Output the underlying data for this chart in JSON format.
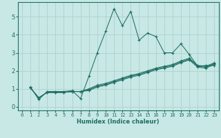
{
  "xlabel": "Humidex (Indice chaleur)",
  "xlim": [
    -0.5,
    23.5
  ],
  "ylim": [
    -0.2,
    5.8
  ],
  "xticks": [
    0,
    1,
    2,
    3,
    4,
    5,
    6,
    7,
    8,
    9,
    10,
    11,
    12,
    13,
    14,
    15,
    16,
    17,
    18,
    19,
    20,
    21,
    22,
    23
  ],
  "yticks": [
    0,
    1,
    2,
    3,
    4,
    5
  ],
  "bg_color": "#c8e8e5",
  "line_color": "#1e6e63",
  "grid_color": "#b0d4cf",
  "line1_x": [
    1,
    2,
    3,
    4,
    5,
    6,
    7,
    8,
    9,
    10,
    11,
    12,
    13,
    14,
    15,
    16,
    17,
    18,
    19,
    20,
    21,
    22,
    23
  ],
  "line1_y": [
    1.1,
    0.4,
    0.85,
    0.85,
    0.85,
    0.9,
    0.45,
    1.7,
    3.0,
    4.2,
    5.45,
    4.5,
    5.3,
    3.7,
    4.1,
    3.9,
    3.0,
    3.0,
    3.5,
    2.9,
    2.25,
    2.3,
    2.3
  ],
  "line2_x": [
    1,
    2,
    3,
    4,
    5,
    6,
    7,
    8,
    9,
    10,
    11,
    12,
    13,
    14,
    15,
    16,
    17,
    18,
    19,
    20,
    21,
    22,
    23
  ],
  "line2_y": [
    1.05,
    0.5,
    0.8,
    0.8,
    0.8,
    0.85,
    0.85,
    0.9,
    1.1,
    1.2,
    1.35,
    1.5,
    1.65,
    1.75,
    1.9,
    2.05,
    2.15,
    2.25,
    2.45,
    2.6,
    2.2,
    2.15,
    2.35
  ],
  "line3_x": [
    1,
    2,
    3,
    4,
    5,
    6,
    7,
    8,
    9,
    10,
    11,
    12,
    13,
    14,
    15,
    16,
    17,
    18,
    19,
    20,
    21,
    22,
    23
  ],
  "line3_y": [
    1.05,
    0.5,
    0.8,
    0.8,
    0.8,
    0.85,
    0.85,
    0.95,
    1.15,
    1.25,
    1.4,
    1.55,
    1.7,
    1.8,
    1.95,
    2.1,
    2.2,
    2.3,
    2.5,
    2.65,
    2.25,
    2.2,
    2.4
  ],
  "line4_x": [
    1,
    2,
    3,
    4,
    5,
    6,
    7,
    8,
    9,
    10,
    11,
    12,
    13,
    14,
    15,
    16,
    17,
    18,
    19,
    20,
    21,
    22,
    23
  ],
  "line4_y": [
    1.05,
    0.5,
    0.8,
    0.8,
    0.8,
    0.85,
    0.85,
    1.0,
    1.2,
    1.3,
    1.45,
    1.6,
    1.75,
    1.85,
    2.0,
    2.15,
    2.25,
    2.35,
    2.55,
    2.7,
    2.3,
    2.25,
    2.45
  ]
}
